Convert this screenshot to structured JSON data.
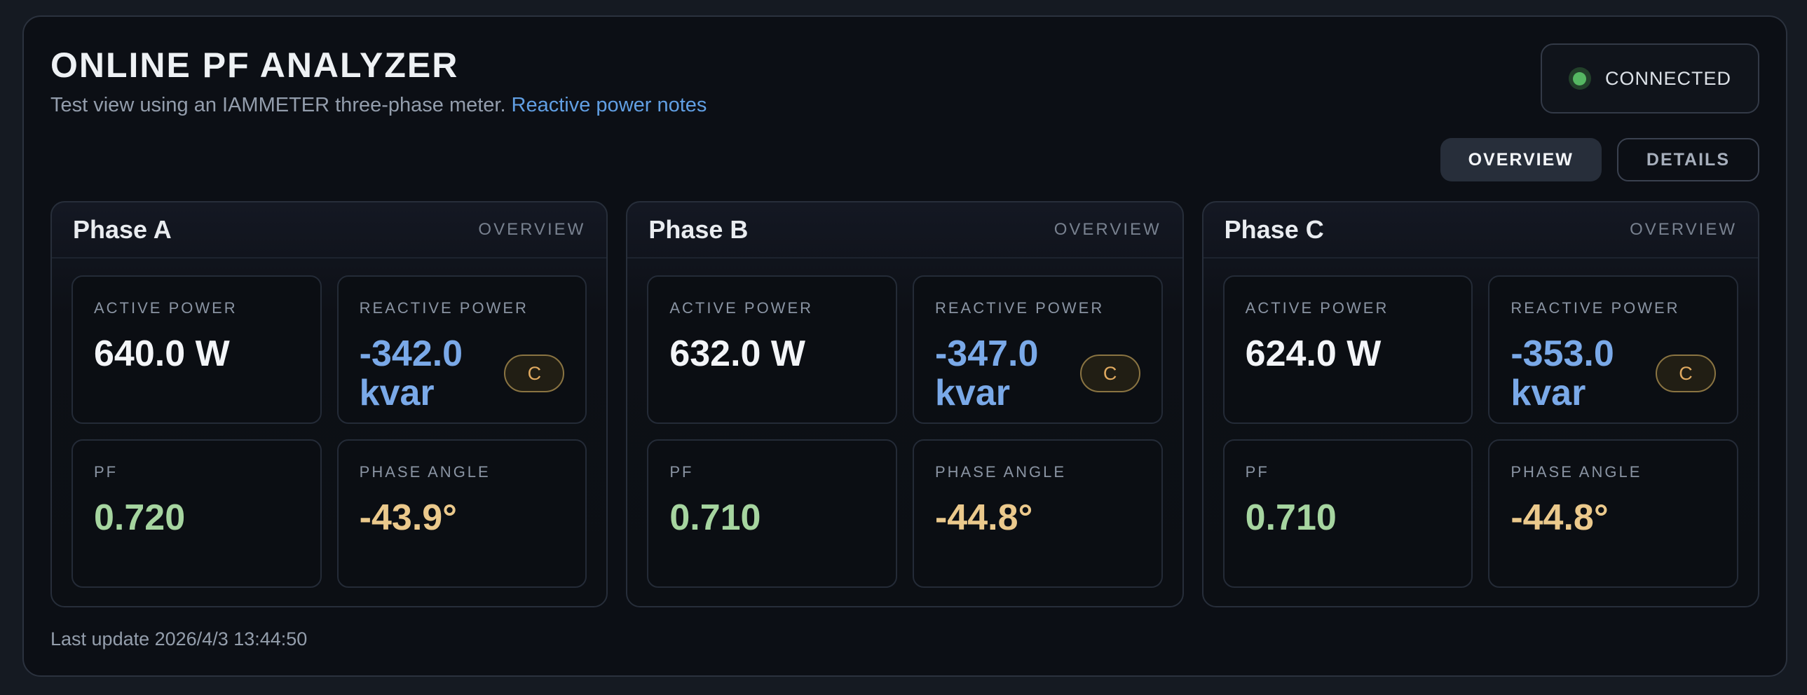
{
  "colors": {
    "accent-blue": "#7aa9e8",
    "accent-green": "#a6d5a0",
    "accent-amber": "#ebc98c",
    "badge-amber": "#e0aa60",
    "status-green": "#55b762",
    "link-blue": "#619fe3",
    "value-white": "#f3f5f8"
  },
  "header": {
    "title": "ONLINE PF ANALYZER",
    "subtitle": "Test view using an IAMMETER three-phase meter.",
    "link_label": "Reactive power notes",
    "status_label": "CONNECTED"
  },
  "tabs": {
    "overview": "OVERVIEW",
    "details": "DETAILS"
  },
  "cards": [
    {
      "title": "Phase A",
      "tag": "OVERVIEW",
      "active_power_label": "ACTIVE POWER",
      "active_power": "640.0 W",
      "reactive_power_label": "REACTIVE POWER",
      "reactive_power": "-342.0 kvar",
      "reactive_badge": "C",
      "pf_label": "PF",
      "pf": "0.720",
      "angle_label": "PHASE ANGLE",
      "angle": "-43.9°"
    },
    {
      "title": "Phase B",
      "tag": "OVERVIEW",
      "active_power_label": "ACTIVE POWER",
      "active_power": "632.0 W",
      "reactive_power_label": "REACTIVE POWER",
      "reactive_power": "-347.0 kvar",
      "reactive_badge": "C",
      "pf_label": "PF",
      "pf": "0.710",
      "angle_label": "PHASE ANGLE",
      "angle": "-44.8°"
    },
    {
      "title": "Phase C",
      "tag": "OVERVIEW",
      "active_power_label": "ACTIVE POWER",
      "active_power": "624.0 W",
      "reactive_power_label": "REACTIVE POWER",
      "reactive_power": "-353.0 kvar",
      "reactive_badge": "C",
      "pf_label": "PF",
      "pf": "0.710",
      "angle_label": "PHASE ANGLE",
      "angle": "-44.8°"
    }
  ],
  "footer": {
    "last_update": "Last update 2026/4/3 13:44:50"
  }
}
